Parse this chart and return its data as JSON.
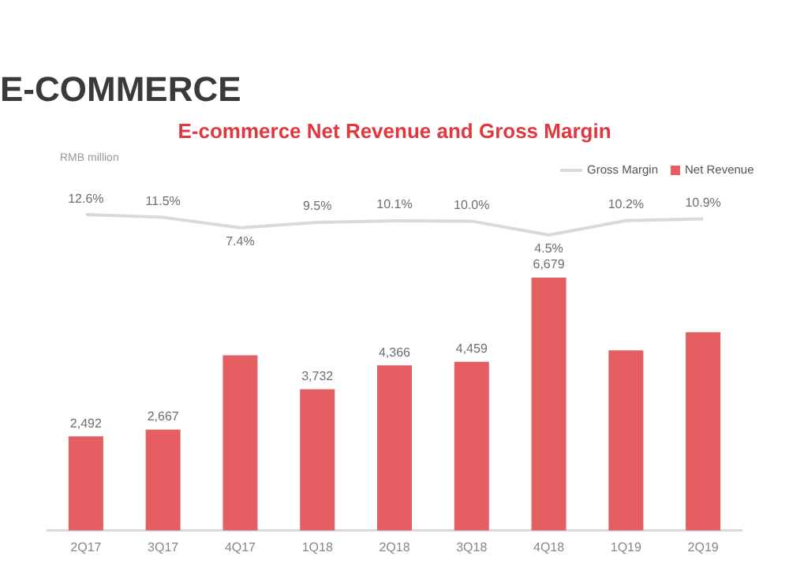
{
  "chart_data": [
    {
      "type": "line",
      "title": "E-commerce Net Revenue and Gross Margin",
      "subtitle": "E-COMMERCE",
      "categories": [
        null,
        null,
        null,
        null,
        null,
        null,
        null,
        null,
        null
      ],
      "series": [
        {
          "name": "Gross Margin",
          "color": "#d9d9d9",
          "values": [
            12.6,
            11.5,
            7.4,
            9.5,
            10.1,
            10.0,
            4.5,
            10.2,
            10.9
          ],
          "value_labels": [
            "12.6%",
            "11.5%",
            "7.4%",
            "9.5%",
            "10.1%",
            "10.0%",
            "4.5%",
            "10.2%",
            "10.9%"
          ]
        }
      ],
      "legend": "top right",
      "grid": false,
      "marker": "none",
      "line_style": "solid"
    },
    {
      "type": "bar",
      "annotations": [
        "RMB million"
      ],
      "categories": [
        "2Q17",
        "3Q17",
        "4Q17",
        "1Q18",
        "2Q18",
        "3Q18",
        "4Q18",
        "1Q19",
        "2Q19"
      ],
      "series": [
        {
          "name": "Net Revenue",
          "color": "#e55f62",
          "values": [
            2492,
            2667,
            4630,
            3732,
            4366,
            4459,
            6679,
            4760,
            5240
          ],
          "value_labels": [
            "2,492",
            "2,667",
            null,
            "3,732",
            "4,366",
            "4,459",
            "6,679",
            null,
            null
          ]
        }
      ],
      "legend": "top right",
      "grid": false
    }
  ]
}
